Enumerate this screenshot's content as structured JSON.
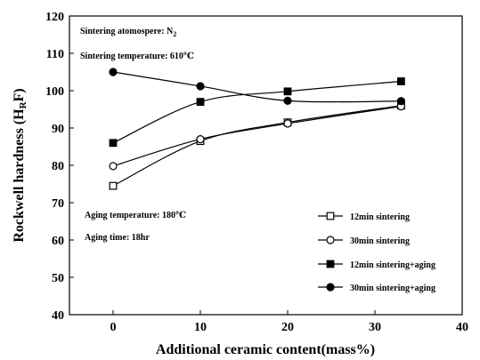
{
  "chart_data": {
    "type": "line",
    "xlabel": "Additional ceramic content(mass%)",
    "ylabel_main": "Rockwell hardness (H",
    "ylabel_sub": "R",
    "ylabel_end": "F)",
    "xlim": [
      -5,
      40
    ],
    "ylim": [
      40,
      120
    ],
    "xticks": [
      0,
      10,
      20,
      30,
      40
    ],
    "yticks": [
      40,
      50,
      60,
      70,
      80,
      90,
      100,
      110,
      120
    ],
    "grid": false,
    "legend_position": "lower-right",
    "series": [
      {
        "name": "12min sintering",
        "marker": "open-square",
        "x": [
          0,
          10,
          20,
          33
        ],
        "y": [
          74.5,
          86.5,
          91.5,
          96
        ]
      },
      {
        "name": "30min sintering",
        "marker": "open-circle",
        "x": [
          0,
          10,
          20,
          33
        ],
        "y": [
          79.8,
          87,
          91.2,
          95.8
        ]
      },
      {
        "name": "12min sintering+aging",
        "marker": "filled-square",
        "x": [
          0,
          10,
          20,
          33
        ],
        "y": [
          86,
          97,
          99.8,
          102.5
        ]
      },
      {
        "name": "30min sintering+aging",
        "marker": "filled-circle",
        "x": [
          0,
          10,
          20,
          33
        ],
        "y": [
          105,
          101.2,
          97.3,
          97.2
        ]
      }
    ],
    "annotations": {
      "atmosphere_text": "Sintering atomospere: N",
      "atmosphere_sub": "2",
      "temperature": "Sintering temperature: 610℃",
      "aging_temperature": "Aging temperature: 180℃",
      "aging_time": "Aging time: 18hr"
    }
  }
}
